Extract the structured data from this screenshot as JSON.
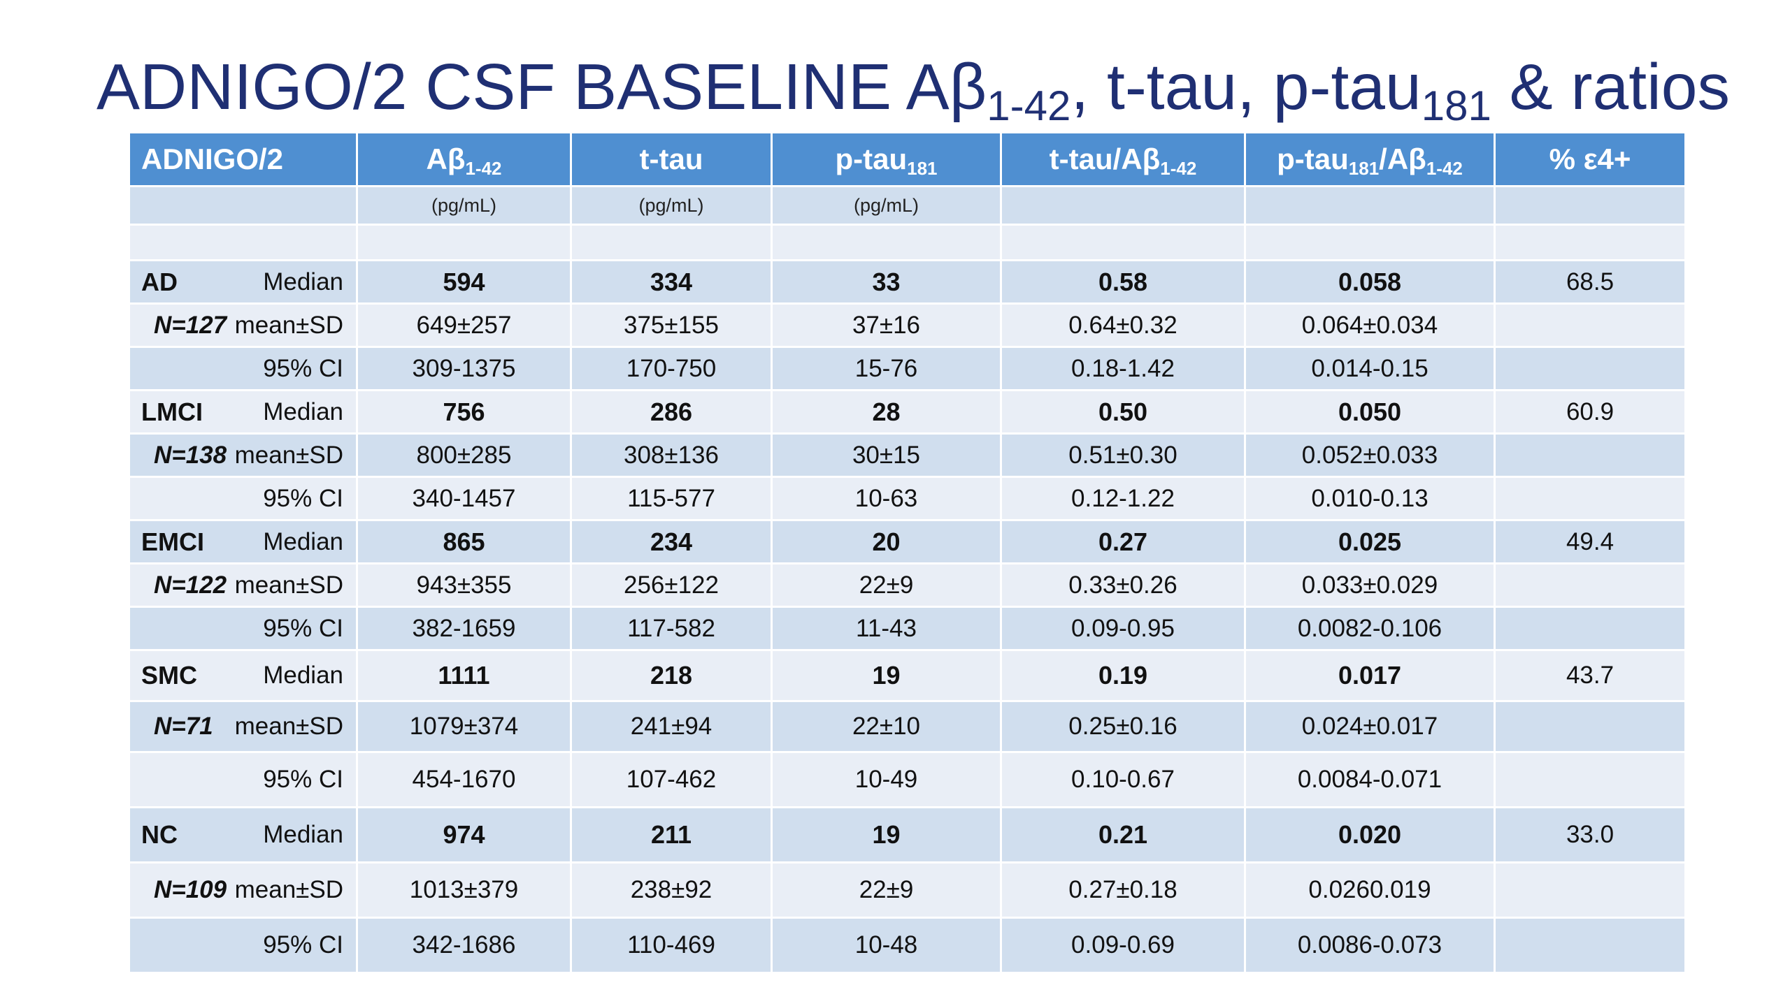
{
  "slide": {
    "title_main": "ADNIGO/2 CSF BASELINE Aβ",
    "title_sub1": "1-42",
    "title_mid": ", t-tau, p-tau",
    "title_sub2": "181",
    "title_end": " & ratios"
  },
  "table": {
    "header": {
      "col0": "ADNIGO/2",
      "col1_main": "Aβ",
      "col1_sub": "1-42",
      "col2": "t-tau",
      "col3_main": "p-tau",
      "col3_sub": "181",
      "col4_main": "t-tau/Aβ",
      "col4_sub": "1-42",
      "col5_main": "p-tau",
      "col5_sub1": "181",
      "col5_mid": "/Aβ",
      "col5_sub2": "1-42",
      "col6": "% ε4+"
    },
    "units": [
      "",
      "(pg/mL)",
      "(pg/mL)",
      "(pg/mL)",
      "",
      "",
      ""
    ],
    "groups": [
      {
        "name": "AD",
        "n": "N=127",
        "rows": [
          {
            "stat": "Median",
            "abeta": "594",
            "ttau": "334",
            "ptau": "33",
            "ttau_ratio": "0.58",
            "ptau_ratio": "0.058",
            "e4": "68.5"
          },
          {
            "stat": "mean±SD",
            "abeta": "649±257",
            "ttau": "375±155",
            "ptau": "37±16",
            "ttau_ratio": "0.64±0.32",
            "ptau_ratio": "0.064±0.034",
            "e4": ""
          },
          {
            "stat": "95% CI",
            "abeta": "309-1375",
            "ttau": "170-750",
            "ptau": "15-76",
            "ttau_ratio": "0.18-1.42",
            "ptau_ratio": "0.014-0.15",
            "e4": ""
          }
        ]
      },
      {
        "name": "LMCI",
        "n": "N=138",
        "rows": [
          {
            "stat": "Median",
            "abeta": "756",
            "ttau": "286",
            "ptau": "28",
            "ttau_ratio": "0.50",
            "ptau_ratio": "0.050",
            "e4": "60.9"
          },
          {
            "stat": "mean±SD",
            "abeta": "800±285",
            "ttau": "308±136",
            "ptau": "30±15",
            "ttau_ratio": "0.51±0.30",
            "ptau_ratio": "0.052±0.033",
            "e4": ""
          },
          {
            "stat": "95% CI",
            "abeta": "340-1457",
            "ttau": "115-577",
            "ptau": "10-63",
            "ttau_ratio": "0.12-1.22",
            "ptau_ratio": "0.010-0.13",
            "e4": ""
          }
        ]
      },
      {
        "name": "EMCI",
        "n": "N=122",
        "rows": [
          {
            "stat": "Median",
            "abeta": "865",
            "ttau": "234",
            "ptau": "20",
            "ttau_ratio": "0.27",
            "ptau_ratio": "0.025",
            "e4": "49.4"
          },
          {
            "stat": "mean±SD",
            "abeta": "943±355",
            "ttau": "256±122",
            "ptau": "22±9",
            "ttau_ratio": "0.33±0.26",
            "ptau_ratio": "0.033±0.029",
            "e4": ""
          },
          {
            "stat": "95% CI",
            "abeta": "382-1659",
            "ttau": "117-582",
            "ptau": "11-43",
            "ttau_ratio": "0.09-0.95",
            "ptau_ratio": "0.0082-0.106",
            "e4": ""
          }
        ]
      },
      {
        "name": "SMC",
        "n": "N=71",
        "rows": [
          {
            "stat": "Median",
            "abeta": "1111",
            "ttau": "218",
            "ptau": "19",
            "ttau_ratio": "0.19",
            "ptau_ratio": "0.017",
            "e4": "43.7"
          },
          {
            "stat": "mean±SD",
            "abeta": "1079±374",
            "ttau": "241±94",
            "ptau": "22±10",
            "ttau_ratio": "0.25±0.16",
            "ptau_ratio": "0.024±0.017",
            "e4": ""
          },
          {
            "stat": "95% CI",
            "abeta": "454-1670",
            "ttau": "107-462",
            "ptau": "10-49",
            "ttau_ratio": "0.10-0.67",
            "ptau_ratio": "0.0084-0.071",
            "e4": ""
          }
        ]
      },
      {
        "name": "NC",
        "n": "N=109",
        "rows": [
          {
            "stat": "Median",
            "abeta": "974",
            "ttau": "211",
            "ptau": "19",
            "ttau_ratio": "0.21",
            "ptau_ratio": "0.020",
            "e4": "33.0"
          },
          {
            "stat": "mean±SD",
            "abeta": "1013±379",
            "ttau": "238±92",
            "ptau": "22±9",
            "ttau_ratio": "0.27±0.18",
            "ptau_ratio": "0.0260.019",
            "e4": ""
          },
          {
            "stat": "95% CI",
            "abeta": "342-1686",
            "ttau": "110-469",
            "ptau": "10-48",
            "ttau_ratio": "0.09-0.69",
            "ptau_ratio": "0.0086-0.073",
            "e4": ""
          }
        ]
      }
    ]
  }
}
